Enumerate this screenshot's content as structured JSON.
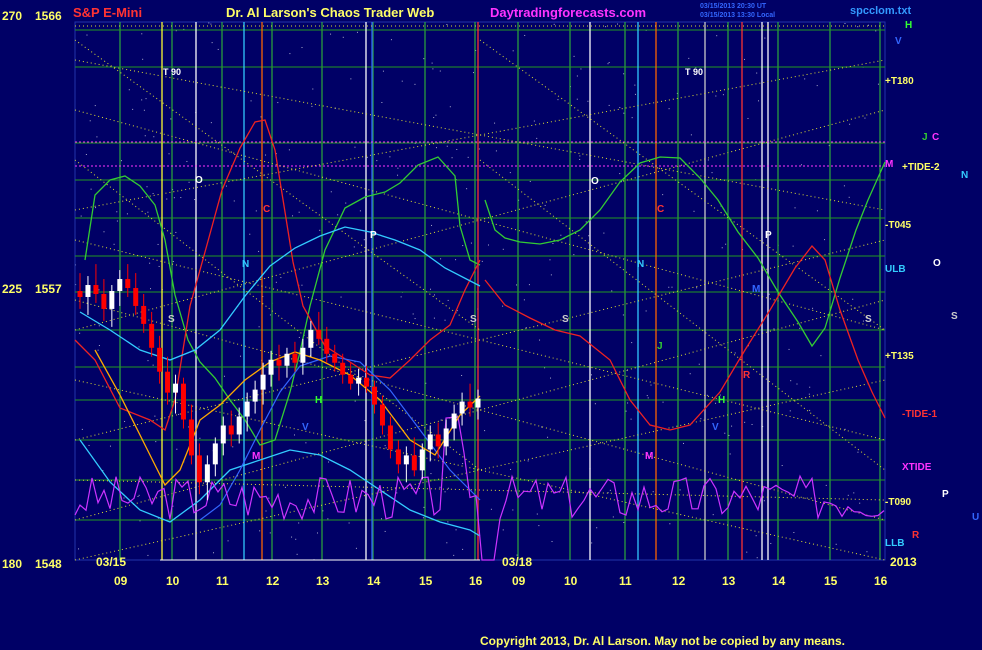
{
  "header": {
    "symbol": "S&P E-Mini",
    "title": "Dr. Al Larson's Chaos Trader Web",
    "site": "Daytradingforecasts.com",
    "file": "spcclom.txt",
    "stamp1": "03/15/2013 20:30 UT",
    "stamp2": "03/15/2013 13:30 Local"
  },
  "footer": {
    "copyright": "Copyright 2013, Dr. Al Larson. May not be copied by any means."
  },
  "colors": {
    "background": "#000066",
    "grid_green": "#33cc33",
    "bull": "#ffffff",
    "bear": "#ff0000",
    "title_red": "#ff3333",
    "title_yellow": "#ffff66",
    "site_magenta": "#ff33ff"
  },
  "chart_data": {
    "type": "candlestick",
    "y_axis_left": [
      {
        "deg": "270",
        "price": "1566"
      },
      {
        "deg": "225",
        "price": "1557"
      },
      {
        "deg": "180",
        "price": "1548"
      }
    ],
    "ylim": [
      1548,
      1566
    ],
    "x_date_labels": [
      "03/15",
      "03/18"
    ],
    "year_label": "2013",
    "x_hours_day1": [
      "09",
      "10",
      "11",
      "12",
      "13",
      "14",
      "15",
      "16"
    ],
    "x_hours_day2": [
      "09",
      "10",
      "11",
      "12",
      "13",
      "14",
      "15",
      "16"
    ],
    "markers_day1": [
      {
        "text": "T 90",
        "color": "#ffffff"
      },
      {
        "text": "O",
        "color": "#ffffff"
      },
      {
        "text": "C",
        "color": "#ff3333"
      },
      {
        "text": "N",
        "color": "#33ccff"
      },
      {
        "text": "P",
        "color": "#ffffff"
      },
      {
        "text": "S",
        "color": "#cccccc"
      },
      {
        "text": "S",
        "color": "#cccccc"
      },
      {
        "text": "H",
        "color": "#33ff33"
      },
      {
        "text": "V",
        "color": "#3366ff"
      },
      {
        "text": "M",
        "color": "#ff33ff"
      }
    ],
    "markers_day2": [
      {
        "text": "T 90",
        "color": "#ffffff"
      },
      {
        "text": "O",
        "color": "#ffffff"
      },
      {
        "text": "C",
        "color": "#ff3333"
      },
      {
        "text": "N",
        "color": "#33ccff"
      },
      {
        "text": "P",
        "color": "#ffffff"
      },
      {
        "text": "S",
        "color": "#cccccc"
      },
      {
        "text": "S",
        "color": "#cccccc"
      },
      {
        "text": "J",
        "color": "#33cc33"
      },
      {
        "text": "M",
        "color": "#ff33ff"
      },
      {
        "text": "H",
        "color": "#33ff33"
      },
      {
        "text": "V",
        "color": "#3366ff"
      },
      {
        "text": "R",
        "color": "#ff3333"
      },
      {
        "text": "M",
        "color": "#3366ff"
      }
    ],
    "right_labels": [
      {
        "text": "H",
        "color": "#33ff33"
      },
      {
        "text": "V",
        "color": "#3366ff"
      },
      {
        "text": "+T180",
        "color": "#ffff66"
      },
      {
        "text": "J",
        "color": "#33cc33"
      },
      {
        "text": "C",
        "color": "#ff33ff"
      },
      {
        "text": "M",
        "color": "#ff33ff"
      },
      {
        "text": "+TIDE-2",
        "color": "#ffff66"
      },
      {
        "text": "N",
        "color": "#33ccff"
      },
      {
        "text": "-T045",
        "color": "#ffff66"
      },
      {
        "text": "ULB",
        "color": "#33ccff"
      },
      {
        "text": "O",
        "color": "#ffffff"
      },
      {
        "text": "S",
        "color": "#cccccc"
      },
      {
        "text": "+T135",
        "color": "#ffff66"
      },
      {
        "text": "-TIDE-1",
        "color": "#ff3333"
      },
      {
        "text": "XTIDE",
        "color": "#ff33ff"
      },
      {
        "text": "P",
        "color": "#ffffff"
      },
      {
        "text": "-T090",
        "color": "#ffff66"
      },
      {
        "text": "U",
        "color": "#3366ff"
      },
      {
        "text": "R",
        "color": "#ff3333"
      },
      {
        "text": "LLB",
        "color": "#33ccff"
      }
    ],
    "candles": [
      {
        "o": 1557.0,
        "h": 1557.6,
        "l": 1556.4,
        "c": 1556.8
      },
      {
        "o": 1556.8,
        "h": 1557.5,
        "l": 1556.2,
        "c": 1557.2
      },
      {
        "o": 1557.2,
        "h": 1557.9,
        "l": 1556.6,
        "c": 1556.9
      },
      {
        "o": 1556.9,
        "h": 1557.4,
        "l": 1556.0,
        "c": 1556.4
      },
      {
        "o": 1556.4,
        "h": 1557.2,
        "l": 1555.8,
        "c": 1557.0
      },
      {
        "o": 1557.0,
        "h": 1557.7,
        "l": 1556.5,
        "c": 1557.4
      },
      {
        "o": 1557.4,
        "h": 1557.9,
        "l": 1556.8,
        "c": 1557.1
      },
      {
        "o": 1557.1,
        "h": 1557.6,
        "l": 1556.2,
        "c": 1556.5
      },
      {
        "o": 1556.5,
        "h": 1556.9,
        "l": 1555.6,
        "c": 1555.9
      },
      {
        "o": 1555.9,
        "h": 1556.3,
        "l": 1554.8,
        "c": 1555.1
      },
      {
        "o": 1555.1,
        "h": 1555.5,
        "l": 1553.9,
        "c": 1554.3
      },
      {
        "o": 1554.3,
        "h": 1554.8,
        "l": 1553.2,
        "c": 1553.6
      },
      {
        "o": 1553.6,
        "h": 1554.2,
        "l": 1552.9,
        "c": 1553.9
      },
      {
        "o": 1553.9,
        "h": 1554.1,
        "l": 1552.4,
        "c": 1552.7
      },
      {
        "o": 1552.7,
        "h": 1553.2,
        "l": 1551.2,
        "c": 1551.5
      },
      {
        "o": 1551.5,
        "h": 1551.9,
        "l": 1550.2,
        "c": 1550.6
      },
      {
        "o": 1550.6,
        "h": 1551.5,
        "l": 1550.0,
        "c": 1551.2
      },
      {
        "o": 1551.2,
        "h": 1552.1,
        "l": 1550.8,
        "c": 1551.9
      },
      {
        "o": 1551.9,
        "h": 1552.8,
        "l": 1551.5,
        "c": 1552.5
      },
      {
        "o": 1552.5,
        "h": 1553.0,
        "l": 1551.8,
        "c": 1552.2
      },
      {
        "o": 1552.2,
        "h": 1553.1,
        "l": 1551.9,
        "c": 1552.8
      },
      {
        "o": 1552.8,
        "h": 1553.6,
        "l": 1552.3,
        "c": 1553.3
      },
      {
        "o": 1553.3,
        "h": 1554.0,
        "l": 1552.9,
        "c": 1553.7
      },
      {
        "o": 1553.7,
        "h": 1554.6,
        "l": 1553.2,
        "c": 1554.2
      },
      {
        "o": 1554.2,
        "h": 1555.0,
        "l": 1553.8,
        "c": 1554.7
      },
      {
        "o": 1554.7,
        "h": 1555.2,
        "l": 1554.0,
        "c": 1554.5
      },
      {
        "o": 1554.5,
        "h": 1555.1,
        "l": 1554.1,
        "c": 1554.9
      },
      {
        "o": 1554.9,
        "h": 1555.3,
        "l": 1554.3,
        "c": 1554.6
      },
      {
        "o": 1554.6,
        "h": 1555.4,
        "l": 1554.2,
        "c": 1555.1
      },
      {
        "o": 1555.1,
        "h": 1556.0,
        "l": 1554.8,
        "c": 1555.7
      },
      {
        "o": 1555.7,
        "h": 1556.3,
        "l": 1555.2,
        "c": 1555.4
      },
      {
        "o": 1555.4,
        "h": 1555.8,
        "l": 1554.6,
        "c": 1554.9
      },
      {
        "o": 1554.9,
        "h": 1555.2,
        "l": 1554.3,
        "c": 1554.6
      },
      {
        "o": 1554.6,
        "h": 1554.9,
        "l": 1553.9,
        "c": 1554.2
      },
      {
        "o": 1554.2,
        "h": 1554.6,
        "l": 1553.7,
        "c": 1553.9
      },
      {
        "o": 1553.9,
        "h": 1554.4,
        "l": 1553.5,
        "c": 1554.1
      },
      {
        "o": 1554.1,
        "h": 1554.5,
        "l": 1553.6,
        "c": 1553.8
      },
      {
        "o": 1553.8,
        "h": 1554.0,
        "l": 1552.9,
        "c": 1553.2
      },
      {
        "o": 1553.2,
        "h": 1553.5,
        "l": 1552.2,
        "c": 1552.5
      },
      {
        "o": 1552.5,
        "h": 1552.8,
        "l": 1551.4,
        "c": 1551.7
      },
      {
        "o": 1551.7,
        "h": 1552.0,
        "l": 1550.9,
        "c": 1551.2
      },
      {
        "o": 1551.2,
        "h": 1551.8,
        "l": 1550.6,
        "c": 1551.5
      },
      {
        "o": 1551.5,
        "h": 1552.1,
        "l": 1550.8,
        "c": 1551.0
      },
      {
        "o": 1551.0,
        "h": 1551.9,
        "l": 1550.7,
        "c": 1551.7
      },
      {
        "o": 1551.7,
        "h": 1552.5,
        "l": 1551.3,
        "c": 1552.2
      },
      {
        "o": 1552.2,
        "h": 1552.6,
        "l": 1551.4,
        "c": 1551.8
      },
      {
        "o": 1551.8,
        "h": 1552.7,
        "l": 1551.5,
        "c": 1552.4
      },
      {
        "o": 1552.4,
        "h": 1553.2,
        "l": 1552.0,
        "c": 1552.9
      },
      {
        "o": 1552.9,
        "h": 1553.6,
        "l": 1552.5,
        "c": 1553.3
      },
      {
        "o": 1553.3,
        "h": 1553.9,
        "l": 1552.8,
        "c": 1553.1
      },
      {
        "o": 1553.1,
        "h": 1553.7,
        "l": 1552.7,
        "c": 1553.4
      }
    ]
  }
}
